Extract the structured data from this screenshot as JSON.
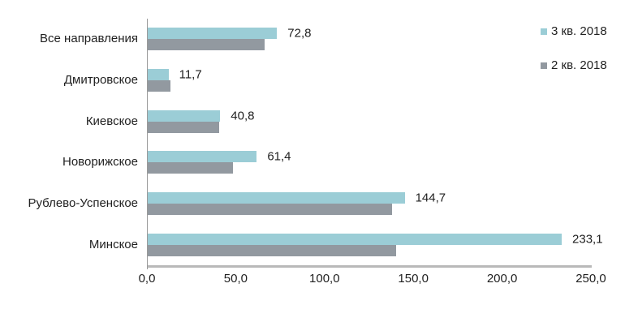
{
  "chart_data": {
    "type": "bar",
    "orientation": "horizontal",
    "categories": [
      "Все направления",
      "Дмитровское",
      "Киевское",
      "Новорижское",
      "Рублево-Успенское",
      "Минское"
    ],
    "series": [
      {
        "name": "3 кв. 2018",
        "color": "#9BCDD6",
        "values": [
          72.8,
          11.7,
          40.8,
          61.4,
          144.7,
          233.1
        ],
        "data_labels": [
          "72,8",
          "11,7",
          "40,8",
          "61,4",
          "144,7",
          "233,1"
        ]
      },
      {
        "name": "2 кв. 2018",
        "color": "#9299A0",
        "values": [
          66,
          13,
          40,
          48,
          137.5,
          140
        ],
        "data_labels": []
      }
    ],
    "xlim": [
      0,
      250
    ],
    "x_tick_values": [
      0,
      50,
      100,
      150,
      200,
      250
    ],
    "x_tick_labels": [
      "0,0",
      "50,0",
      "100,0",
      "150,0",
      "200,0",
      "250,0"
    ],
    "grid": false,
    "legend_position": "top-right"
  },
  "colors": {
    "axis_line": "#9a9a9a",
    "baseline": "#b9b9b9",
    "text": "#1f1f1f",
    "background": "#ffffff"
  }
}
